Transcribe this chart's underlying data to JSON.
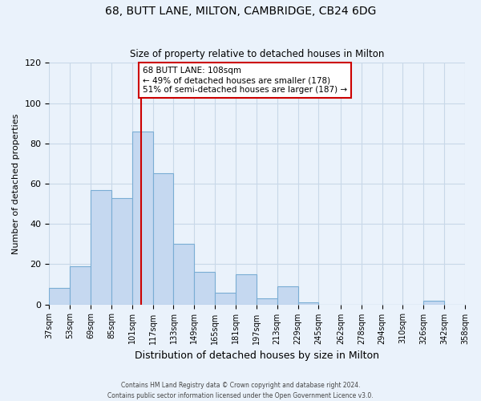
{
  "title": "68, BUTT LANE, MILTON, CAMBRIDGE, CB24 6DG",
  "subtitle": "Size of property relative to detached houses in Milton",
  "xlabel": "Distribution of detached houses by size in Milton",
  "ylabel": "Number of detached properties",
  "bar_values": [
    8,
    19,
    57,
    53,
    86,
    65,
    30,
    16,
    6,
    15,
    3,
    9,
    1,
    0,
    0,
    0,
    0,
    0,
    2,
    0
  ],
  "bin_edges": [
    37,
    53,
    69,
    85,
    101,
    117,
    133,
    149,
    165,
    181,
    197,
    213,
    229,
    245,
    262,
    278,
    294,
    310,
    326,
    342,
    358
  ],
  "tick_labels": [
    "37sqm",
    "53sqm",
    "69sqm",
    "85sqm",
    "101sqm",
    "117sqm",
    "133sqm",
    "149sqm",
    "165sqm",
    "181sqm",
    "197sqm",
    "213sqm",
    "229sqm",
    "245sqm",
    "262sqm",
    "278sqm",
    "294sqm",
    "310sqm",
    "326sqm",
    "342sqm",
    "358sqm"
  ],
  "bar_color": "#c5d8f0",
  "bar_edge_color": "#7aadd4",
  "ylim": [
    0,
    120
  ],
  "yticks": [
    0,
    20,
    40,
    60,
    80,
    100,
    120
  ],
  "vline_x": 108,
  "vline_color": "#cc0000",
  "annotation_title": "68 BUTT LANE: 108sqm",
  "annotation_line1": "← 49% of detached houses are smaller (178)",
  "annotation_line2": "51% of semi-detached houses are larger (187) →",
  "annotation_box_color": "#ffffff",
  "annotation_box_edgecolor": "#cc0000",
  "grid_color": "#c8d8e8",
  "background_color": "#eaf2fb",
  "footer_line1": "Contains HM Land Registry data © Crown copyright and database right 2024.",
  "footer_line2": "Contains public sector information licensed under the Open Government Licence v3.0."
}
